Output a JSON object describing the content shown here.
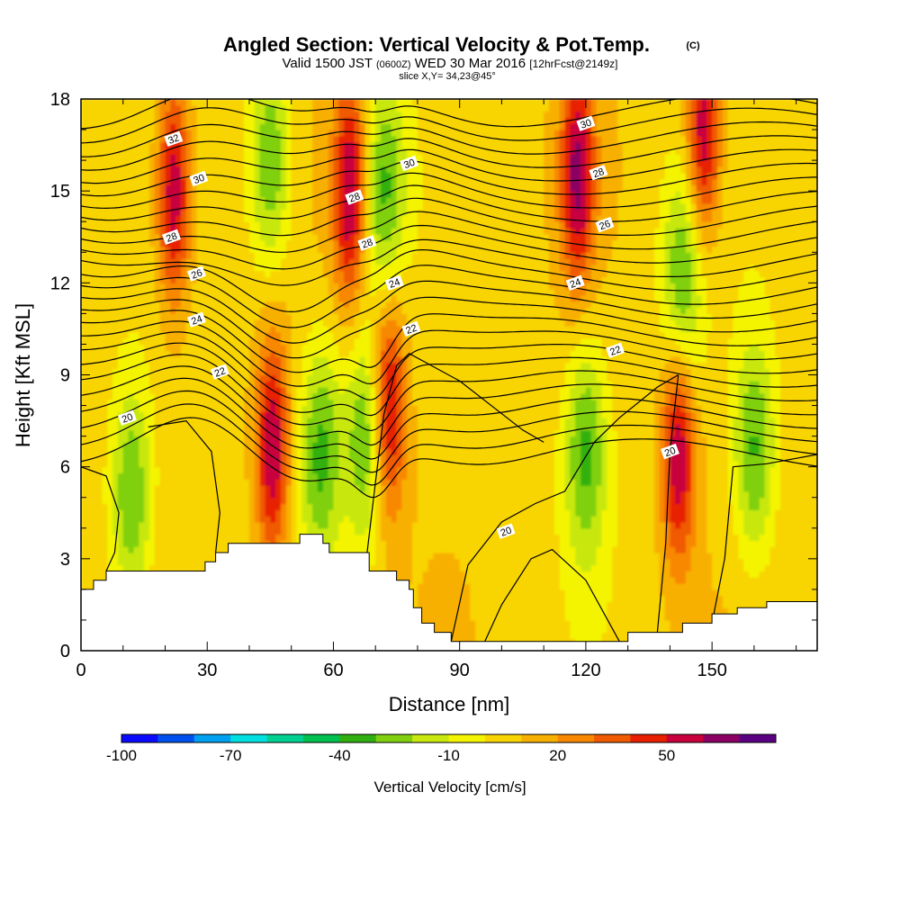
{
  "header": {
    "title": "Angled Section: Vertical Velocity & Pot.Temp.",
    "title_units": "(C)",
    "valid_prefix": "Valid 1500 JST",
    "valid_utc": "(0600Z)",
    "valid_date": "WED 30 Mar 2016",
    "forecast": "[12hrFcst@2149z]",
    "slice": "slice X,Y= 34,23@45°"
  },
  "chart_data": {
    "type": "heatmap",
    "title": "Angled Section: Vertical Velocity & Pot.Temp.",
    "xlabel": "Distance [nm]",
    "ylabel": "Height [Kft MSL]",
    "xlim": [
      0,
      175
    ],
    "ylim": [
      0,
      18
    ],
    "x_ticks": [
      0,
      30,
      60,
      90,
      120,
      150
    ],
    "y_ticks": [
      0,
      3,
      6,
      9,
      12,
      15,
      18
    ],
    "colorbar": {
      "title": "Vertical Velocity [cm/s]",
      "bounds": [
        -100,
        -90,
        -80,
        -70,
        -60,
        -50,
        -40,
        -30,
        -20,
        -10,
        0,
        10,
        20,
        30,
        40,
        50,
        60,
        70
      ],
      "tick_labels": [
        -100,
        -70,
        -40,
        -10,
        20,
        50
      ],
      "colors": [
        "#0a0aff",
        "#0050f0",
        "#00a0f0",
        "#00e0e0",
        "#00d090",
        "#00c050",
        "#30b010",
        "#80d010",
        "#c8e810",
        "#f4f400",
        "#f8d400",
        "#f8b000",
        "#f88800",
        "#f05a00",
        "#e82000",
        "#c8003c",
        "#8c0064",
        "#5a0082"
      ]
    },
    "vertical_velocity_cores": [
      {
        "x": 22,
        "z": 15,
        "sign": "up"
      },
      {
        "x": 45,
        "z": 16,
        "sign": "down"
      },
      {
        "x": 64,
        "z": 15,
        "sign": "up"
      },
      {
        "x": 72,
        "z": 15,
        "sign": "down"
      },
      {
        "x": 73,
        "z": 8,
        "sign": "up"
      },
      {
        "x": 57,
        "z": 6.5,
        "sign": "down"
      },
      {
        "x": 45.5,
        "z": 6.5,
        "sign": "up"
      },
      {
        "x": 68,
        "z": 7,
        "sign": "down"
      },
      {
        "x": 118,
        "z": 15.5,
        "sign": "up"
      },
      {
        "x": 148,
        "z": 17,
        "sign": "up"
      },
      {
        "x": 120,
        "z": 6.5,
        "sign": "down"
      },
      {
        "x": 142,
        "z": 6.5,
        "sign": "up"
      },
      {
        "x": 143,
        "z": 12,
        "sign": "down"
      },
      {
        "x": 160,
        "z": 6.5,
        "sign": "down"
      },
      {
        "x": 12,
        "z": 5,
        "sign": "down"
      }
    ],
    "potential_temperature_labels": [
      {
        "value": "32",
        "x": 22,
        "z": 16.7
      },
      {
        "value": "30",
        "x": 28,
        "z": 15.4
      },
      {
        "value": "28",
        "x": 21.5,
        "z": 13.5
      },
      {
        "value": "26",
        "x": 27.5,
        "z": 12.3
      },
      {
        "value": "24",
        "x": 27.5,
        "z": 10.8
      },
      {
        "value": "22",
        "x": 33,
        "z": 9.1
      },
      {
        "value": "20",
        "x": 11,
        "z": 7.6
      },
      {
        "value": "28",
        "x": 65,
        "z": 14.8
      },
      {
        "value": "28",
        "x": 68,
        "z": 13.3
      },
      {
        "value": "30",
        "x": 78,
        "z": 15.9
      },
      {
        "value": "24",
        "x": 74.5,
        "z": 12.0
      },
      {
        "value": "22",
        "x": 78.5,
        "z": 10.5
      },
      {
        "value": "20",
        "x": 101,
        "z": 3.9
      },
      {
        "value": "30",
        "x": 120,
        "z": 17.2
      },
      {
        "value": "28",
        "x": 123,
        "z": 15.6
      },
      {
        "value": "26",
        "x": 124.5,
        "z": 13.9
      },
      {
        "value": "24",
        "x": 117.5,
        "z": 12.0
      },
      {
        "value": "22",
        "x": 127,
        "z": 9.8
      },
      {
        "value": "20",
        "x": 140,
        "z": 6.5
      }
    ],
    "terrain": [
      [
        0,
        2.0
      ],
      [
        3,
        2.0
      ],
      [
        3,
        2.3
      ],
      [
        6,
        2.3
      ],
      [
        6,
        2.6
      ],
      [
        29.5,
        2.6
      ],
      [
        29.5,
        2.9
      ],
      [
        32,
        2.9
      ],
      [
        32,
        3.2
      ],
      [
        35,
        3.2
      ],
      [
        35,
        3.5
      ],
      [
        52,
        3.5
      ],
      [
        52,
        3.8
      ],
      [
        57.5,
        3.8
      ],
      [
        57.5,
        3.5
      ],
      [
        59,
        3.5
      ],
      [
        59,
        3.2
      ],
      [
        68.5,
        3.2
      ],
      [
        68.5,
        2.6
      ],
      [
        75,
        2.6
      ],
      [
        75,
        2.3
      ],
      [
        78,
        2.3
      ],
      [
        78,
        2.0
      ],
      [
        79,
        2.0
      ],
      [
        79,
        1.4
      ],
      [
        81,
        1.4
      ],
      [
        81,
        0.9
      ],
      [
        84,
        0.9
      ],
      [
        84,
        0.6
      ],
      [
        88,
        0.6
      ],
      [
        88,
        0.3
      ],
      [
        130,
        0.3
      ],
      [
        130,
        0.6
      ],
      [
        143,
        0.6
      ],
      [
        143,
        0.9
      ],
      [
        150,
        0.9
      ],
      [
        150,
        1.2
      ],
      [
        156,
        1.2
      ],
      [
        156,
        1.4
      ],
      [
        163,
        1.4
      ],
      [
        163,
        1.6
      ],
      [
        175,
        1.6
      ]
    ]
  }
}
